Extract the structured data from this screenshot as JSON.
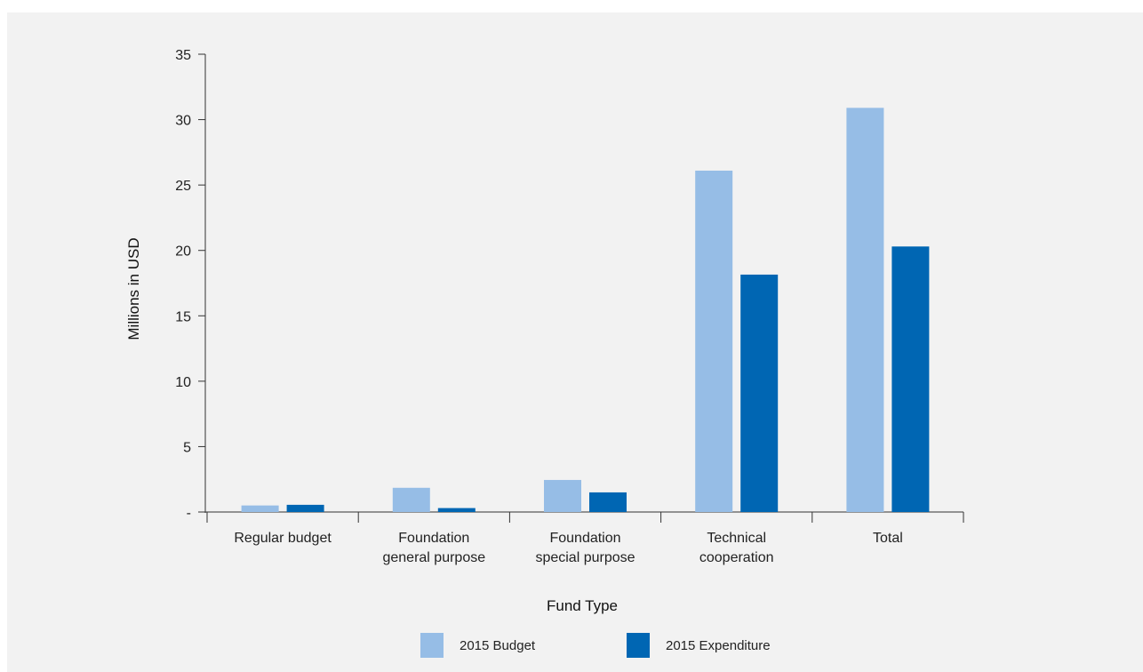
{
  "chart_data": {
    "type": "bar",
    "title": "",
    "xlabel": "Fund Type",
    "ylabel": "Millions in USD",
    "ylim": [
      0,
      35
    ],
    "yticks": [
      {
        "value": 0,
        "label": "-"
      },
      {
        "value": 5,
        "label": "5"
      },
      {
        "value": 10,
        "label": "10"
      },
      {
        "value": 15,
        "label": "15"
      },
      {
        "value": 20,
        "label": "20"
      },
      {
        "value": 25,
        "label": "25"
      },
      {
        "value": 30,
        "label": "30"
      },
      {
        "value": 35,
        "label": "35"
      }
    ],
    "categories": [
      [
        "Regular budget"
      ],
      [
        "Foundation",
        "general purpose"
      ],
      [
        "Foundation",
        "special purpose"
      ],
      [
        "Technical",
        "cooperation"
      ],
      [
        "Total"
      ]
    ],
    "series": [
      {
        "name": "2015 Budget",
        "color": "#96bde6",
        "values": [
          0.5,
          1.85,
          2.45,
          26.1,
          30.9
        ]
      },
      {
        "name": "2015 Expenditure",
        "color": "#0066b3",
        "values": [
          0.55,
          0.3,
          1.5,
          18.15,
          20.3
        ]
      }
    ],
    "grid": false,
    "legend": "bottom-center"
  }
}
